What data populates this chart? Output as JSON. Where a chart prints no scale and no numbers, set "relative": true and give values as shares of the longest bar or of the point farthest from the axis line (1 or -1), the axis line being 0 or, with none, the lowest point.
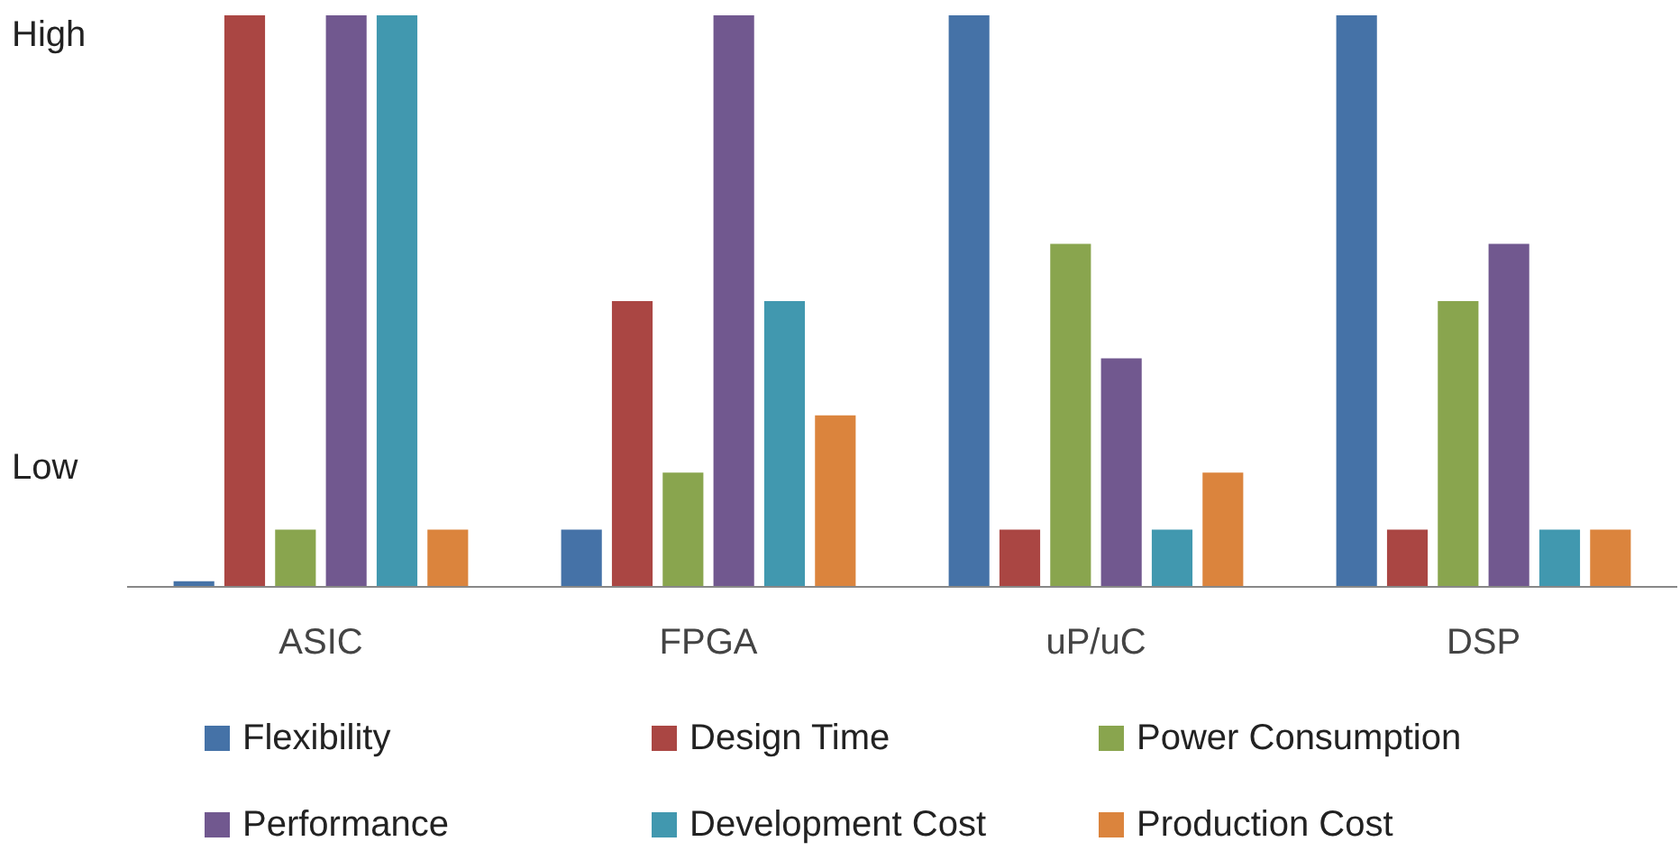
{
  "chart_data": {
    "type": "bar",
    "relative": true,
    "categories": [
      "ASIC",
      "FPGA",
      "uP/uC",
      "DSP"
    ],
    "annotations": [
      "Low",
      "High"
    ],
    "legend": "bottom",
    "series": [
      {
        "name": "Flexibility",
        "color": "#4572a7",
        "values": [
          0.01,
          0.1,
          1,
          1
        ]
      },
      {
        "name": "Design Time",
        "color": "#aa4643",
        "values": [
          1,
          0.5,
          0.1,
          0.1
        ]
      },
      {
        "name": "Power Consumption",
        "color": "#89a54e",
        "values": [
          0.1,
          0.2,
          0.6,
          0.5
        ]
      },
      {
        "name": "Performance",
        "color": "#71588f",
        "values": [
          1,
          1,
          0.4,
          0.6
        ]
      },
      {
        "name": "Development Cost",
        "color": "#4198af",
        "values": [
          1,
          0.5,
          0.1,
          0.1
        ]
      },
      {
        "name": "Production Cost",
        "color": "#db843d",
        "values": [
          0.1,
          0.3,
          0.2,
          0.1
        ]
      }
    ]
  }
}
